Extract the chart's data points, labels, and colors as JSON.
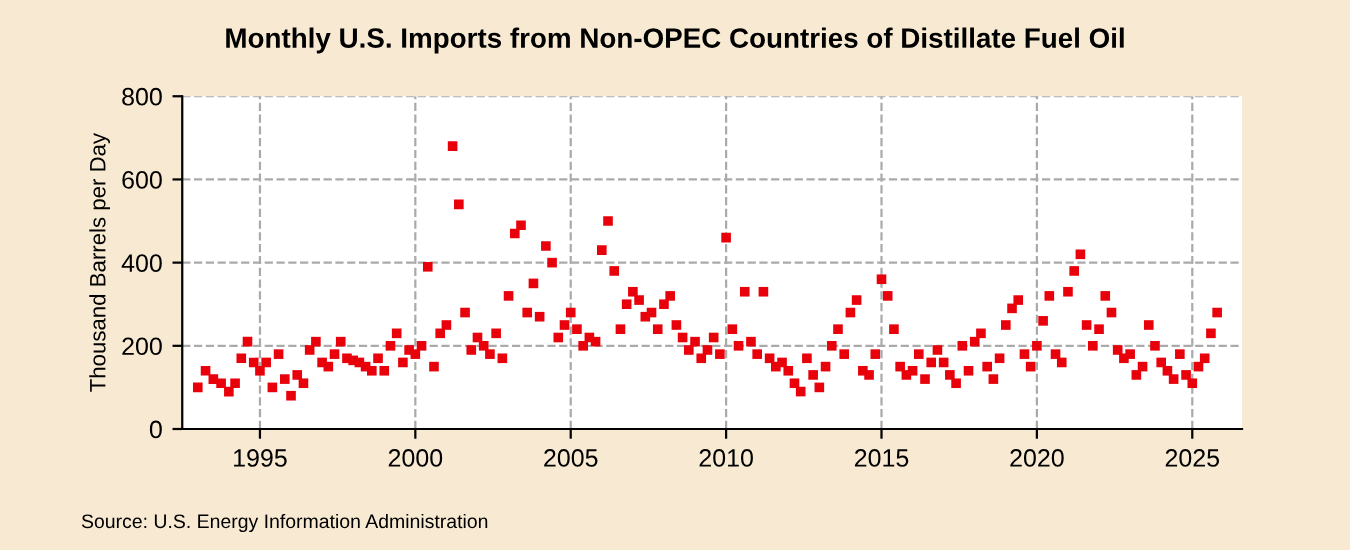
{
  "chart_data": {
    "type": "scatter",
    "title": "Monthly U.S. Imports from Non-OPEC Countries of Distillate Fuel Oil",
    "ylabel": "Thousand Barrels per Day",
    "x": [
      1993.0,
      1993.25,
      1993.5,
      1993.75,
      1994.0,
      1994.2,
      1994.4,
      1994.6,
      1994.8,
      1995.0,
      1995.2,
      1995.4,
      1995.6,
      1995.8,
      1996.0,
      1996.2,
      1996.4,
      1996.6,
      1996.8,
      1997.0,
      1997.2,
      1997.4,
      1997.6,
      1997.8,
      1998.0,
      1998.2,
      1998.4,
      1998.6,
      1998.8,
      1999.0,
      1999.2,
      1999.4,
      1999.6,
      1999.8,
      2000.0,
      2000.2,
      2000.4,
      2000.6,
      2000.8,
      2001.0,
      2001.2,
      2001.4,
      2001.6,
      2001.8,
      2002.0,
      2002.2,
      2002.4,
      2002.6,
      2002.8,
      2003.0,
      2003.2,
      2003.4,
      2003.6,
      2003.8,
      2004.0,
      2004.2,
      2004.4,
      2004.6,
      2004.8,
      2005.0,
      2005.2,
      2005.4,
      2005.6,
      2005.8,
      2006.0,
      2006.2,
      2006.4,
      2006.6,
      2006.8,
      2007.0,
      2007.2,
      2007.4,
      2007.6,
      2007.8,
      2008.0,
      2008.2,
      2008.4,
      2008.6,
      2008.8,
      2009.0,
      2009.2,
      2009.4,
      2009.6,
      2009.8,
      2010.0,
      2010.2,
      2010.4,
      2010.6,
      2010.8,
      2011.0,
      2011.2,
      2011.4,
      2011.6,
      2011.8,
      2012.0,
      2012.2,
      2012.4,
      2012.6,
      2012.8,
      2013.0,
      2013.2,
      2013.4,
      2013.6,
      2013.8,
      2014.0,
      2014.2,
      2014.4,
      2014.6,
      2014.8,
      2015.0,
      2015.2,
      2015.4,
      2015.6,
      2015.8,
      2016.0,
      2016.2,
      2016.4,
      2016.6,
      2016.8,
      2017.0,
      2017.2,
      2017.4,
      2017.6,
      2017.8,
      2018.0,
      2018.2,
      2018.4,
      2018.6,
      2018.8,
      2019.0,
      2019.2,
      2019.4,
      2019.6,
      2019.8,
      2020.0,
      2020.2,
      2020.4,
      2020.6,
      2020.8,
      2021.0,
      2021.2,
      2021.4,
      2021.6,
      2021.8,
      2022.0,
      2022.2,
      2022.4,
      2022.6,
      2022.8,
      2023.0,
      2023.2,
      2023.4,
      2023.6,
      2023.8,
      2024.0,
      2024.2,
      2024.4,
      2024.6,
      2024.8,
      2025.0,
      2025.2,
      2025.4,
      2025.6,
      2025.8
    ],
    "series": [
      {
        "color": "#e8000b",
        "values": [
          100,
          140,
          120,
          110,
          90,
          110,
          170,
          210,
          160,
          140,
          160,
          100,
          180,
          120,
          80,
          130,
          110,
          190,
          210,
          160,
          150,
          180,
          210,
          170,
          165,
          160,
          150,
          140,
          170,
          140,
          200,
          230,
          160,
          190,
          180,
          200,
          390,
          150,
          230,
          250,
          680,
          540,
          280,
          190,
          220,
          200,
          180,
          230,
          170,
          320,
          470,
          490,
          280,
          350,
          270,
          440,
          400,
          220,
          250,
          280,
          240,
          200,
          220,
          210,
          430,
          500,
          380,
          240,
          300,
          330,
          310,
          270,
          280,
          240,
          300,
          320,
          250,
          220,
          190,
          210,
          170,
          190,
          220,
          180,
          460,
          240,
          200,
          330,
          210,
          180,
          330,
          170,
          150,
          160,
          140,
          110,
          90,
          170,
          130,
          100,
          150,
          200,
          240,
          180,
          280,
          310,
          140,
          130,
          180,
          360,
          320,
          240,
          150,
          130,
          140,
          180,
          120,
          160,
          190,
          160,
          130,
          110,
          200,
          140,
          210,
          230,
          150,
          120,
          170,
          250,
          290,
          310,
          180,
          150,
          200,
          260,
          320,
          180,
          160,
          330,
          380,
          420,
          250,
          200,
          240,
          320,
          280,
          190,
          170,
          180,
          130,
          150,
          250,
          200,
          160,
          140,
          120,
          180,
          130,
          110,
          150,
          170,
          230,
          280
        ]
      }
    ],
    "xlim": [
      1992.5,
      2026.6
    ],
    "xticks": [
      1995,
      2000,
      2005,
      2010,
      2015,
      2020,
      2025
    ],
    "ylim": [
      0,
      800
    ],
    "yticks": [
      0,
      200,
      400,
      600,
      800
    ],
    "grid": true,
    "marker": "square",
    "annotations": [
      "Source: U.S. Energy Information Administration"
    ]
  }
}
